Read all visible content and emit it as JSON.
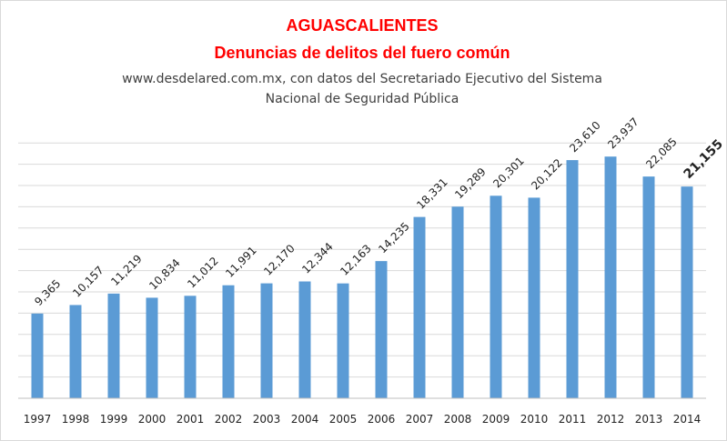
{
  "chart_data": {
    "type": "bar",
    "title": "AGUASCALIENTES",
    "subtitle": "Denuncias de delitos del fuero común",
    "source_line1": "www.desdelared.com.mx, con datos del Secretariado Ejecutivo del Sistema",
    "source_line2": "Nacional de Seguridad Pública",
    "categories": [
      "1997",
      "1998",
      "1999",
      "2000",
      "2001",
      "2002",
      "2003",
      "2004",
      "2005",
      "2006",
      "2007",
      "2008",
      "2009",
      "2010",
      "2011",
      "2012",
      "2013",
      "2014"
    ],
    "values": [
      9365,
      10157,
      11219,
      10834,
      11012,
      11991,
      12170,
      12344,
      12163,
      14235,
      18331,
      19289,
      20301,
      20122,
      23610,
      23937,
      22085,
      21155
    ],
    "data_labels": [
      "9,365",
      "10,157",
      "11,219",
      "10,834",
      "11,012",
      "11,991",
      "12,170",
      "12,344",
      "12,163",
      "14,235",
      "18,331",
      "19,289",
      "20,301",
      "20,122",
      "23,610",
      "23,937",
      "22,085",
      "21,155"
    ],
    "highlight_last_label": true,
    "ylim": [
      1500,
      27500
    ],
    "xlabel": "",
    "ylabel": "",
    "legend": "none",
    "grid": true,
    "bar_color": "#5b9bd5",
    "gridline_color": "#d9d9d9",
    "title_color": "#ff0000",
    "subtitle_color": "#404040"
  }
}
